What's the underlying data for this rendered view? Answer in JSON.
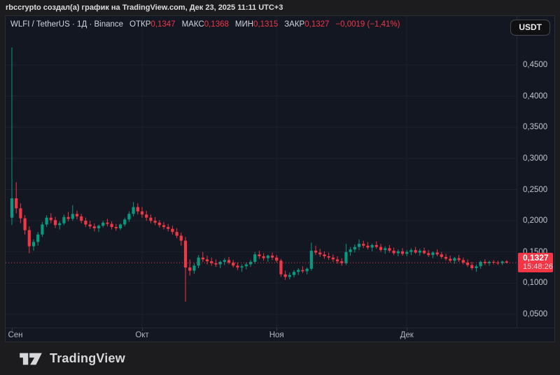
{
  "attribution_bar": {
    "text": "rbccrypto создал(а) график на TradingView.com, Дек 23, 2025 11:11 UTC+3"
  },
  "toolbar": {
    "symbol": "WLFI / TetherUS",
    "separator": "·",
    "interval": "1Д",
    "exchange": "Binance",
    "ohlc": [
      {
        "label": "ОТКР",
        "value": "0,1347"
      },
      {
        "label": "МАКС",
        "value": "0,1368"
      },
      {
        "label": "МИН",
        "value": "0,1315"
      },
      {
        "label": "ЗАКР",
        "value": "0,1327"
      }
    ],
    "change": "−0,0019 (−1,41%)",
    "currency_button": "USDT"
  },
  "price_scale": {
    "last_price_label": {
      "price": "0,1327",
      "countdown": "15:48:26"
    }
  },
  "footer": {
    "brand": "TradingView"
  },
  "colors": {
    "up": "#089981",
    "down": "#f23645",
    "panel_bg": "#131722",
    "chrome_bg": "#1c1c1e",
    "grid": "#1e222d",
    "axis_text": "#b2b5be",
    "legend_text": "#d1d4dc",
    "last_price": "#f23645"
  },
  "chart_data": {
    "type": "candlestick",
    "title": "WLFI / TetherUS · 1Д · Binance",
    "symbol": "WLFI/TetherUS",
    "exchange": "Binance",
    "timeframe": "1D",
    "x_start": "2025-09-01",
    "x_end": "2025-12-23",
    "ylim": [
      0.05,
      0.478
    ],
    "grid": true,
    "last_close": 0.1327,
    "last_candle_ohlc": {
      "open": 0.1347,
      "high": 0.1368,
      "low": 0.1315,
      "close": 0.1327,
      "change": -0.0019,
      "change_pct": -1.41
    },
    "y_ticks": [
      {
        "label": "0,4500",
        "value": 0.45
      },
      {
        "label": "0,4000",
        "value": 0.4
      },
      {
        "label": "0,3500",
        "value": 0.35
      },
      {
        "label": "0,3000",
        "value": 0.3
      },
      {
        "label": "0,2500",
        "value": 0.25
      },
      {
        "label": "0,2000",
        "value": 0.2
      },
      {
        "label": "0,1500",
        "value": 0.15
      },
      {
        "label": "0,1000",
        "value": 0.1
      },
      {
        "label": "0,0500",
        "value": 0.05
      }
    ],
    "x_ticks": [
      {
        "label": "Сен",
        "day_index": 0
      },
      {
        "label": "Окт",
        "day_index": 30
      },
      {
        "label": "Ноя",
        "day_index": 61
      },
      {
        "label": "Дек",
        "day_index": 91
      }
    ],
    "ohlc_series_format": [
      "open",
      "high",
      "low",
      "close"
    ],
    "ohlc": [
      [
        0.205,
        0.478,
        0.193,
        0.236
      ],
      [
        0.236,
        0.262,
        0.212,
        0.22
      ],
      [
        0.22,
        0.228,
        0.196,
        0.204
      ],
      [
        0.204,
        0.209,
        0.178,
        0.185
      ],
      [
        0.185,
        0.191,
        0.148,
        0.159
      ],
      [
        0.159,
        0.17,
        0.152,
        0.166
      ],
      [
        0.166,
        0.182,
        0.16,
        0.178
      ],
      [
        0.178,
        0.198,
        0.174,
        0.194
      ],
      [
        0.194,
        0.209,
        0.19,
        0.205
      ],
      [
        0.205,
        0.212,
        0.196,
        0.201
      ],
      [
        0.201,
        0.206,
        0.188,
        0.193
      ],
      [
        0.193,
        0.199,
        0.186,
        0.196
      ],
      [
        0.196,
        0.21,
        0.193,
        0.206
      ],
      [
        0.206,
        0.214,
        0.199,
        0.203
      ],
      [
        0.203,
        0.225,
        0.2,
        0.211
      ],
      [
        0.211,
        0.216,
        0.202,
        0.207
      ],
      [
        0.207,
        0.211,
        0.196,
        0.2
      ],
      [
        0.2,
        0.205,
        0.19,
        0.194
      ],
      [
        0.194,
        0.2,
        0.187,
        0.191
      ],
      [
        0.191,
        0.196,
        0.183,
        0.188
      ],
      [
        0.188,
        0.194,
        0.182,
        0.192
      ],
      [
        0.192,
        0.2,
        0.189,
        0.197
      ],
      [
        0.197,
        0.203,
        0.191,
        0.195
      ],
      [
        0.195,
        0.199,
        0.186,
        0.19
      ],
      [
        0.19,
        0.195,
        0.184,
        0.188
      ],
      [
        0.188,
        0.196,
        0.185,
        0.194
      ],
      [
        0.194,
        0.205,
        0.191,
        0.202
      ],
      [
        0.202,
        0.215,
        0.198,
        0.211
      ],
      [
        0.211,
        0.23,
        0.207,
        0.222
      ],
      [
        0.222,
        0.228,
        0.21,
        0.215
      ],
      [
        0.215,
        0.222,
        0.205,
        0.21
      ],
      [
        0.21,
        0.216,
        0.2,
        0.205
      ],
      [
        0.205,
        0.21,
        0.196,
        0.2
      ],
      [
        0.2,
        0.206,
        0.193,
        0.197
      ],
      [
        0.197,
        0.201,
        0.189,
        0.193
      ],
      [
        0.193,
        0.198,
        0.186,
        0.19
      ],
      [
        0.19,
        0.195,
        0.183,
        0.187
      ],
      [
        0.187,
        0.192,
        0.178,
        0.182
      ],
      [
        0.182,
        0.188,
        0.172,
        0.176
      ],
      [
        0.176,
        0.181,
        0.16,
        0.168
      ],
      [
        0.168,
        0.174,
        0.07,
        0.125
      ],
      [
        0.125,
        0.138,
        0.112,
        0.12
      ],
      [
        0.12,
        0.132,
        0.115,
        0.128
      ],
      [
        0.128,
        0.145,
        0.124,
        0.141
      ],
      [
        0.141,
        0.15,
        0.134,
        0.138
      ],
      [
        0.138,
        0.144,
        0.13,
        0.135
      ],
      [
        0.135,
        0.141,
        0.128,
        0.132
      ],
      [
        0.132,
        0.138,
        0.126,
        0.13
      ],
      [
        0.13,
        0.136,
        0.124,
        0.134
      ],
      [
        0.134,
        0.14,
        0.129,
        0.137
      ],
      [
        0.137,
        0.142,
        0.13,
        0.133
      ],
      [
        0.133,
        0.137,
        0.125,
        0.128
      ],
      [
        0.128,
        0.133,
        0.121,
        0.125
      ],
      [
        0.125,
        0.13,
        0.118,
        0.127
      ],
      [
        0.127,
        0.133,
        0.122,
        0.13
      ],
      [
        0.13,
        0.137,
        0.126,
        0.134
      ],
      [
        0.134,
        0.15,
        0.131,
        0.146
      ],
      [
        0.146,
        0.152,
        0.139,
        0.143
      ],
      [
        0.143,
        0.148,
        0.136,
        0.14
      ],
      [
        0.14,
        0.146,
        0.134,
        0.144
      ],
      [
        0.144,
        0.149,
        0.137,
        0.141
      ],
      [
        0.141,
        0.145,
        0.133,
        0.136
      ],
      [
        0.136,
        0.139,
        0.11,
        0.114
      ],
      [
        0.114,
        0.12,
        0.105,
        0.11
      ],
      [
        0.11,
        0.117,
        0.106,
        0.113
      ],
      [
        0.113,
        0.121,
        0.109,
        0.118
      ],
      [
        0.118,
        0.124,
        0.113,
        0.121
      ],
      [
        0.121,
        0.127,
        0.116,
        0.119
      ],
      [
        0.119,
        0.125,
        0.114,
        0.123
      ],
      [
        0.123,
        0.165,
        0.12,
        0.152
      ],
      [
        0.152,
        0.16,
        0.145,
        0.149
      ],
      [
        0.149,
        0.155,
        0.142,
        0.146
      ],
      [
        0.146,
        0.151,
        0.139,
        0.143
      ],
      [
        0.143,
        0.149,
        0.137,
        0.141
      ],
      [
        0.141,
        0.146,
        0.134,
        0.138
      ],
      [
        0.138,
        0.143,
        0.131,
        0.135
      ],
      [
        0.135,
        0.14,
        0.128,
        0.132
      ],
      [
        0.132,
        0.163,
        0.129,
        0.15
      ],
      [
        0.15,
        0.158,
        0.144,
        0.154
      ],
      [
        0.154,
        0.162,
        0.149,
        0.158
      ],
      [
        0.158,
        0.17,
        0.153,
        0.163
      ],
      [
        0.163,
        0.168,
        0.156,
        0.16
      ],
      [
        0.16,
        0.166,
        0.154,
        0.157
      ],
      [
        0.157,
        0.163,
        0.151,
        0.161
      ],
      [
        0.161,
        0.167,
        0.155,
        0.158
      ],
      [
        0.158,
        0.163,
        0.15,
        0.153
      ],
      [
        0.153,
        0.159,
        0.147,
        0.156
      ],
      [
        0.156,
        0.161,
        0.149,
        0.152
      ],
      [
        0.152,
        0.157,
        0.145,
        0.148
      ],
      [
        0.148,
        0.154,
        0.143,
        0.151
      ],
      [
        0.151,
        0.156,
        0.144,
        0.147
      ],
      [
        0.147,
        0.153,
        0.143,
        0.15
      ],
      [
        0.15,
        0.156,
        0.145,
        0.153
      ],
      [
        0.153,
        0.158,
        0.147,
        0.149
      ],
      [
        0.149,
        0.155,
        0.144,
        0.152
      ],
      [
        0.152,
        0.157,
        0.146,
        0.148
      ],
      [
        0.148,
        0.153,
        0.142,
        0.145
      ],
      [
        0.145,
        0.151,
        0.14,
        0.149
      ],
      [
        0.149,
        0.154,
        0.143,
        0.146
      ],
      [
        0.146,
        0.15,
        0.139,
        0.142
      ],
      [
        0.142,
        0.147,
        0.136,
        0.139
      ],
      [
        0.139,
        0.144,
        0.133,
        0.136
      ],
      [
        0.136,
        0.142,
        0.131,
        0.14
      ],
      [
        0.14,
        0.145,
        0.134,
        0.137
      ],
      [
        0.137,
        0.141,
        0.13,
        0.133
      ],
      [
        0.133,
        0.138,
        0.126,
        0.129
      ],
      [
        0.129,
        0.134,
        0.121,
        0.124
      ],
      [
        0.124,
        0.13,
        0.118,
        0.127
      ],
      [
        0.127,
        0.136,
        0.123,
        0.134
      ],
      [
        0.134,
        0.138,
        0.129,
        0.132
      ],
      [
        0.132,
        0.136,
        0.128,
        0.134
      ],
      [
        0.134,
        0.137,
        0.13,
        0.133
      ],
      [
        0.133,
        0.136,
        0.129,
        0.132
      ],
      [
        0.132,
        0.136,
        0.129,
        0.1346
      ],
      [
        0.1347,
        0.1368,
        0.1315,
        0.1327
      ]
    ]
  }
}
